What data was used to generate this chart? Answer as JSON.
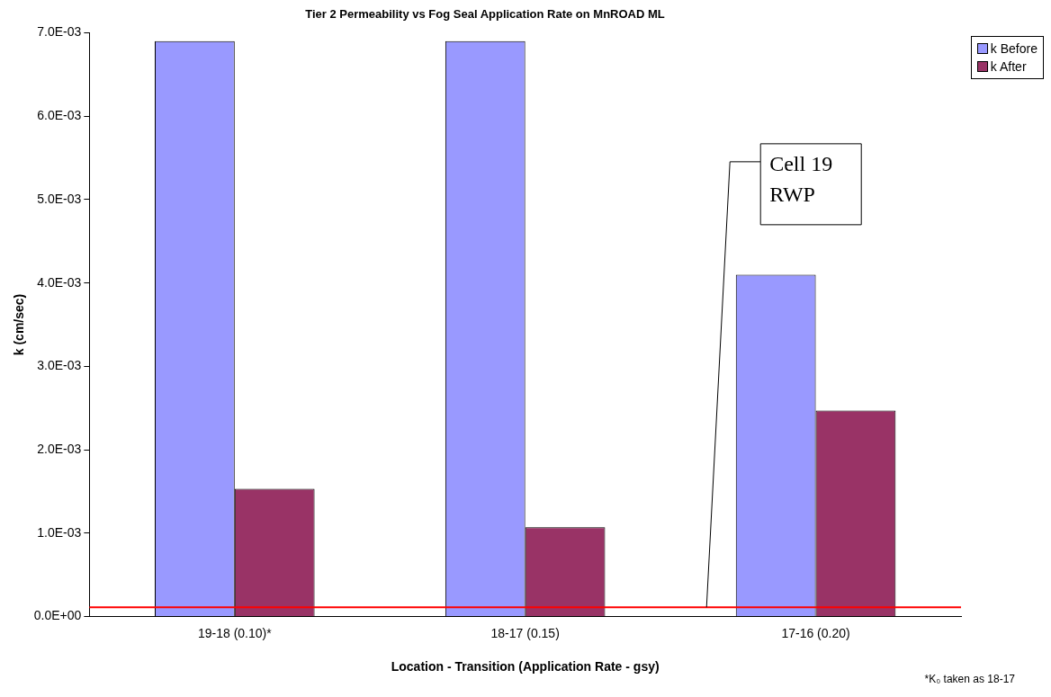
{
  "chart_data": {
    "type": "bar",
    "title": "Tier 2 Permeability vs Fog Seal Application Rate on MnROAD ML",
    "xlabel": "Location - Transition (Application Rate - gsy)",
    "ylabel": "k (cm/sec)",
    "categories": [
      "19-18 (0.10)*",
      "18-17 (0.15)",
      "17-16 (0.20)"
    ],
    "series": [
      {
        "name": "k Before",
        "color": "#9999ff",
        "values": [
          0.0069,
          0.0069,
          0.0041
        ]
      },
      {
        "name": "k After",
        "color": "#993366",
        "values": [
          0.00153,
          0.00107,
          0.00247
        ]
      }
    ],
    "ylim": [
      0,
      0.007
    ],
    "yticks": [
      {
        "value": 0,
        "label": "0.0E+00"
      },
      {
        "value": 0.001,
        "label": "1.0E-03"
      },
      {
        "value": 0.002,
        "label": "2.0E-03"
      },
      {
        "value": 0.003,
        "label": "3.0E-03"
      },
      {
        "value": 0.004,
        "label": "4.0E-03"
      },
      {
        "value": 0.005,
        "label": "5.0E-03"
      },
      {
        "value": 0.006,
        "label": "6.0E-03"
      },
      {
        "value": 0.007,
        "label": "7.0E-03"
      }
    ],
    "ref_lines": [
      {
        "axis": "y",
        "value": 0.00011,
        "color": "#ff0000",
        "label": "Cell 19\nRWP"
      }
    ],
    "annotations": [
      "*K₀ taken as 18-17"
    ],
    "grid": false,
    "legend": "top right"
  }
}
